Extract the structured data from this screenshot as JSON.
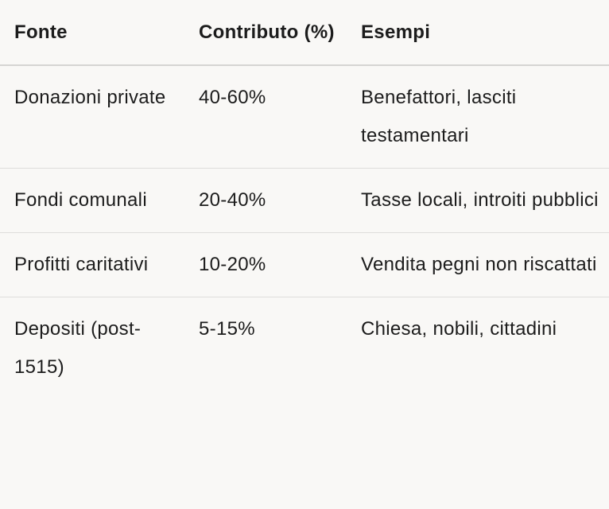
{
  "table": {
    "headers": [
      "Fonte",
      "Contributo (%)",
      "Esempi"
    ],
    "rows": [
      [
        "Donazioni private",
        "40-60%",
        "Benefattori, lasciti testamentari"
      ],
      [
        "Fondi comunali",
        "20-40%",
        "Tasse locali, introiti pubblici"
      ],
      [
        "Profitti caritativi",
        "10-20%",
        "Vendita pegni non riscattati"
      ],
      [
        "Depositi (post-1515)",
        "5-15%",
        "Chiesa, nobili, cittadini"
      ]
    ]
  }
}
